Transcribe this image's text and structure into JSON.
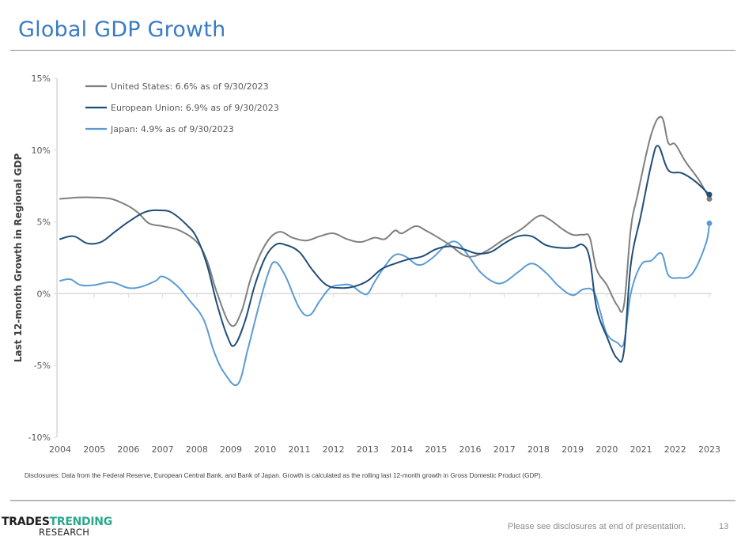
{
  "page": {
    "title": "Global GDP Growth",
    "disclosure": "Disclosures: Data from the Federal Reserve, European Central Bank, and Bank of Japan. Growth is calculated as the rolling last 12-month growth in Gross Domestic Product (GDP).",
    "footer_note": "Please see disclosures at end of presentation.",
    "page_number": "13",
    "logo": {
      "part1": "TRADES",
      "part2": "TRENDING",
      "part3": "RESEARCH"
    }
  },
  "colors": {
    "us": "#7f7f7f",
    "eu": "#1f4e79",
    "japan": "#5b9bd5",
    "title": "#3a7cc4",
    "brand": "#2aa88c"
  },
  "chart_data": {
    "type": "line",
    "title": "Global GDP Growth",
    "xlabel": "",
    "ylabel": "Last 12-month Growth in Regional GDP",
    "ylim": [
      -10,
      15
    ],
    "xlim": [
      2004,
      2023
    ],
    "yticks": [
      15,
      10,
      5,
      0,
      -5,
      -10
    ],
    "ytick_labels": [
      "15%",
      "10%",
      "5%",
      "0%",
      "-5%",
      "-10%"
    ],
    "xtick_labels": [
      "2004",
      "2005",
      "2006",
      "2007",
      "2008",
      "2009",
      "2010",
      "2011",
      "2012",
      "2013",
      "2014",
      "2015",
      "2016",
      "2017",
      "2018",
      "2019",
      "2020",
      "2021",
      "2022",
      "2023"
    ],
    "grid": false,
    "legend_position": "top-left",
    "series": [
      {
        "name": "United States: 6.6% as of 9/30/2023",
        "key": "us",
        "end_marker": true,
        "points": [
          [
            2004.0,
            6.6
          ],
          [
            2004.5,
            6.7
          ],
          [
            2005.0,
            6.7
          ],
          [
            2005.5,
            6.6
          ],
          [
            2006.0,
            6.1
          ],
          [
            2006.3,
            5.6
          ],
          [
            2006.6,
            4.9
          ],
          [
            2007.0,
            4.7
          ],
          [
            2007.5,
            4.4
          ],
          [
            2008.0,
            3.6
          ],
          [
            2008.3,
            2.3
          ],
          [
            2008.6,
            0.0
          ],
          [
            2009.0,
            -2.2
          ],
          [
            2009.3,
            -1.3
          ],
          [
            2009.6,
            1.2
          ],
          [
            2010.0,
            3.4
          ],
          [
            2010.4,
            4.3
          ],
          [
            2010.8,
            3.9
          ],
          [
            2011.2,
            3.7
          ],
          [
            2011.6,
            4.0
          ],
          [
            2012.0,
            4.2
          ],
          [
            2012.4,
            3.8
          ],
          [
            2012.8,
            3.6
          ],
          [
            2013.2,
            3.9
          ],
          [
            2013.5,
            3.8
          ],
          [
            2013.8,
            4.4
          ],
          [
            2014.0,
            4.2
          ],
          [
            2014.4,
            4.7
          ],
          [
            2014.7,
            4.4
          ],
          [
            2015.0,
            4.0
          ],
          [
            2015.4,
            3.4
          ],
          [
            2015.8,
            2.7
          ],
          [
            2016.1,
            2.6
          ],
          [
            2016.5,
            3.0
          ],
          [
            2017.0,
            3.8
          ],
          [
            2017.5,
            4.5
          ],
          [
            2018.0,
            5.4
          ],
          [
            2018.3,
            5.2
          ],
          [
            2018.7,
            4.5
          ],
          [
            2019.0,
            4.1
          ],
          [
            2019.3,
            4.1
          ],
          [
            2019.5,
            3.9
          ],
          [
            2019.7,
            1.7
          ],
          [
            2020.0,
            0.6
          ],
          [
            2020.3,
            -0.8
          ],
          [
            2020.5,
            -0.8
          ],
          [
            2020.7,
            4.5
          ],
          [
            2020.9,
            6.9
          ],
          [
            2021.3,
            11.1
          ],
          [
            2021.6,
            12.3
          ],
          [
            2021.8,
            10.5
          ],
          [
            2022.0,
            10.4
          ],
          [
            2022.3,
            9.2
          ],
          [
            2022.7,
            7.9
          ],
          [
            2023.0,
            6.9
          ],
          [
            2023.0,
            6.6
          ]
        ]
      },
      {
        "name": "European Union: 6.9% as of 9/30/2023",
        "key": "eu",
        "end_marker": true,
        "points": [
          [
            2004.0,
            3.8
          ],
          [
            2004.4,
            4.0
          ],
          [
            2004.8,
            3.5
          ],
          [
            2005.2,
            3.6
          ],
          [
            2005.6,
            4.3
          ],
          [
            2006.0,
            5.0
          ],
          [
            2006.5,
            5.7
          ],
          [
            2007.0,
            5.8
          ],
          [
            2007.3,
            5.6
          ],
          [
            2007.7,
            4.8
          ],
          [
            2008.0,
            3.9
          ],
          [
            2008.3,
            2.0
          ],
          [
            2008.6,
            -0.8
          ],
          [
            2008.9,
            -3.0
          ],
          [
            2009.1,
            -3.6
          ],
          [
            2009.4,
            -2.0
          ],
          [
            2009.7,
            0.6
          ],
          [
            2010.0,
            2.5
          ],
          [
            2010.3,
            3.4
          ],
          [
            2010.6,
            3.4
          ],
          [
            2011.0,
            2.9
          ],
          [
            2011.4,
            1.6
          ],
          [
            2011.8,
            0.6
          ],
          [
            2012.2,
            0.4
          ],
          [
            2012.6,
            0.5
          ],
          [
            2013.0,
            0.9
          ],
          [
            2013.4,
            1.7
          ],
          [
            2013.8,
            2.1
          ],
          [
            2014.2,
            2.4
          ],
          [
            2014.6,
            2.6
          ],
          [
            2015.0,
            3.1
          ],
          [
            2015.4,
            3.3
          ],
          [
            2015.8,
            3.1
          ],
          [
            2016.2,
            2.8
          ],
          [
            2016.6,
            2.9
          ],
          [
            2017.0,
            3.5
          ],
          [
            2017.4,
            4.0
          ],
          [
            2017.8,
            4.0
          ],
          [
            2018.2,
            3.4
          ],
          [
            2018.6,
            3.2
          ],
          [
            2019.0,
            3.2
          ],
          [
            2019.3,
            3.4
          ],
          [
            2019.5,
            2.4
          ],
          [
            2019.7,
            -1.0
          ],
          [
            2020.0,
            -3.0
          ],
          [
            2020.3,
            -4.5
          ],
          [
            2020.5,
            -4.0
          ],
          [
            2020.7,
            2.0
          ],
          [
            2021.0,
            5.5
          ],
          [
            2021.3,
            9.0
          ],
          [
            2021.5,
            10.3
          ],
          [
            2021.8,
            8.6
          ],
          [
            2022.2,
            8.4
          ],
          [
            2022.6,
            7.8
          ],
          [
            2023.0,
            7.0
          ],
          [
            2023.0,
            6.9
          ]
        ]
      },
      {
        "name": "Japan: 4.9% as of 9/30/2023",
        "key": "japan",
        "end_marker": true,
        "points": [
          [
            2004.0,
            0.9
          ],
          [
            2004.3,
            1.0
          ],
          [
            2004.6,
            0.6
          ],
          [
            2005.0,
            0.6
          ],
          [
            2005.5,
            0.8
          ],
          [
            2006.0,
            0.4
          ],
          [
            2006.4,
            0.5
          ],
          [
            2006.8,
            0.9
          ],
          [
            2007.0,
            1.2
          ],
          [
            2007.4,
            0.6
          ],
          [
            2007.8,
            -0.5
          ],
          [
            2008.2,
            -1.8
          ],
          [
            2008.5,
            -4.0
          ],
          [
            2008.8,
            -5.5
          ],
          [
            2009.2,
            -6.3
          ],
          [
            2009.5,
            -3.8
          ],
          [
            2009.8,
            -1.0
          ],
          [
            2010.1,
            1.5
          ],
          [
            2010.3,
            2.2
          ],
          [
            2010.6,
            1.2
          ],
          [
            2011.0,
            -1.0
          ],
          [
            2011.3,
            -1.5
          ],
          [
            2011.6,
            -0.5
          ],
          [
            2011.9,
            0.4
          ],
          [
            2012.2,
            0.6
          ],
          [
            2012.5,
            0.6
          ],
          [
            2012.8,
            0.1
          ],
          [
            2013.0,
            0.0
          ],
          [
            2013.2,
            0.8
          ],
          [
            2013.5,
            1.9
          ],
          [
            2013.8,
            2.7
          ],
          [
            2014.1,
            2.6
          ],
          [
            2014.5,
            2.0
          ],
          [
            2014.9,
            2.5
          ],
          [
            2015.3,
            3.4
          ],
          [
            2015.6,
            3.6
          ],
          [
            2015.9,
            2.8
          ],
          [
            2016.3,
            1.5
          ],
          [
            2016.7,
            0.8
          ],
          [
            2017.0,
            0.8
          ],
          [
            2017.4,
            1.5
          ],
          [
            2017.8,
            2.1
          ],
          [
            2018.2,
            1.5
          ],
          [
            2018.6,
            0.5
          ],
          [
            2019.0,
            -0.1
          ],
          [
            2019.3,
            0.3
          ],
          [
            2019.6,
            0.2
          ],
          [
            2019.8,
            -1.2
          ],
          [
            2020.0,
            -2.8
          ],
          [
            2020.3,
            -3.4
          ],
          [
            2020.5,
            -3.4
          ],
          [
            2020.7,
            0.0
          ],
          [
            2021.0,
            2.0
          ],
          [
            2021.3,
            2.3
          ],
          [
            2021.6,
            2.8
          ],
          [
            2021.8,
            1.3
          ],
          [
            2022.1,
            1.1
          ],
          [
            2022.5,
            1.4
          ],
          [
            2022.9,
            3.5
          ],
          [
            2023.0,
            4.2
          ],
          [
            2023.0,
            4.9
          ]
        ]
      }
    ]
  }
}
